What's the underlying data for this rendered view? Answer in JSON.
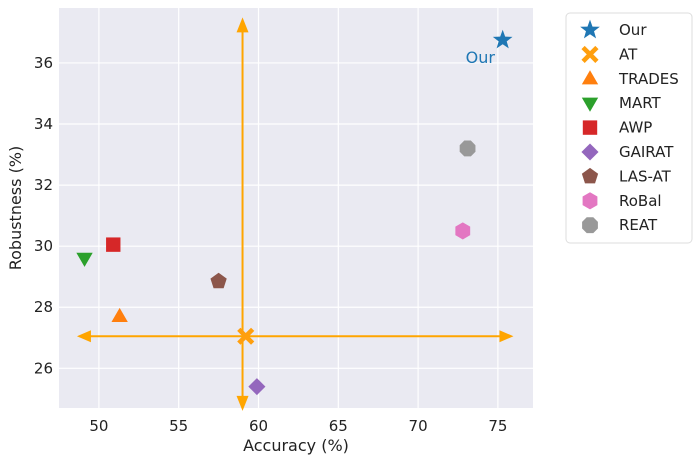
{
  "chart_data": {
    "type": "scatter",
    "xlabel": "Accuracy (%)",
    "ylabel": "Robustness (%)",
    "xlim": [
      47.5,
      77.2
    ],
    "ylim": [
      24.7,
      37.8
    ],
    "x_ticks": [
      50,
      55,
      60,
      65,
      70,
      75
    ],
    "y_ticks": [
      26,
      28,
      30,
      32,
      34,
      36
    ],
    "grid": true,
    "legend_position": "outside-right",
    "series": [
      {
        "name": "Our",
        "x": 75.3,
        "y": 36.75,
        "marker": "star",
        "color": "#1f77b4"
      },
      {
        "name": "AT",
        "x": 59.2,
        "y": 27.05,
        "marker": "x",
        "color": "#ff9f0e"
      },
      {
        "name": "TRADES",
        "x": 51.3,
        "y": 27.7,
        "marker": "triangle-up",
        "color": "#ff7f0e"
      },
      {
        "name": "MART",
        "x": 49.1,
        "y": 29.6,
        "marker": "triangle-down",
        "color": "#2ca02c"
      },
      {
        "name": "AWP",
        "x": 50.9,
        "y": 30.05,
        "marker": "square",
        "color": "#d62728"
      },
      {
        "name": "GAIRAT",
        "x": 59.9,
        "y": 25.4,
        "marker": "diamond",
        "color": "#9467bd"
      },
      {
        "name": "LAS-AT",
        "x": 57.5,
        "y": 28.85,
        "marker": "pentagon",
        "color": "#8c564b"
      },
      {
        "name": "RoBal",
        "x": 72.8,
        "y": 30.5,
        "marker": "hexagon",
        "color": "#e377c2"
      },
      {
        "name": "REAT",
        "x": 73.1,
        "y": 33.2,
        "marker": "octagon",
        "color": "#999999"
      }
    ],
    "annotations": [
      {
        "text": "Our",
        "x": 73.9,
        "y": 36.2,
        "color": "#1f77b4"
      }
    ],
    "reference_arrows": {
      "color": "#ffa500",
      "vertical": {
        "x": 59.0,
        "y_from": 25.0,
        "y_to": 37.1
      },
      "horizontal": {
        "y": 27.05,
        "x_from": 49.0,
        "x_to": 75.6
      }
    }
  }
}
